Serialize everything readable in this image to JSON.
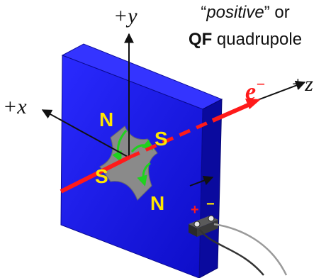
{
  "title": {
    "line1_q1": "“",
    "line1_em": "positive",
    "line1_rest": "” or",
    "line2_strong": "QF",
    "line2_rest": " quadrupole"
  },
  "axes": {
    "y": "+y",
    "x": "+x",
    "z": "+z"
  },
  "beam": {
    "particle": "e",
    "charge": "−"
  },
  "poles": {
    "upper_left": "N",
    "upper_right": "S",
    "lower_left": "S",
    "lower_right": "N"
  },
  "terminals": {
    "positive": "+",
    "negative": "−"
  },
  "colors": {
    "magnet_front": "#1414e6",
    "magnet_side": "#0a0a9e",
    "magnet_top": "#3434ff",
    "pole_label": "#ffe600",
    "beam": "#ff1a1a",
    "aperture": "#8a8a8a",
    "field_lines": "#1fd11f"
  }
}
